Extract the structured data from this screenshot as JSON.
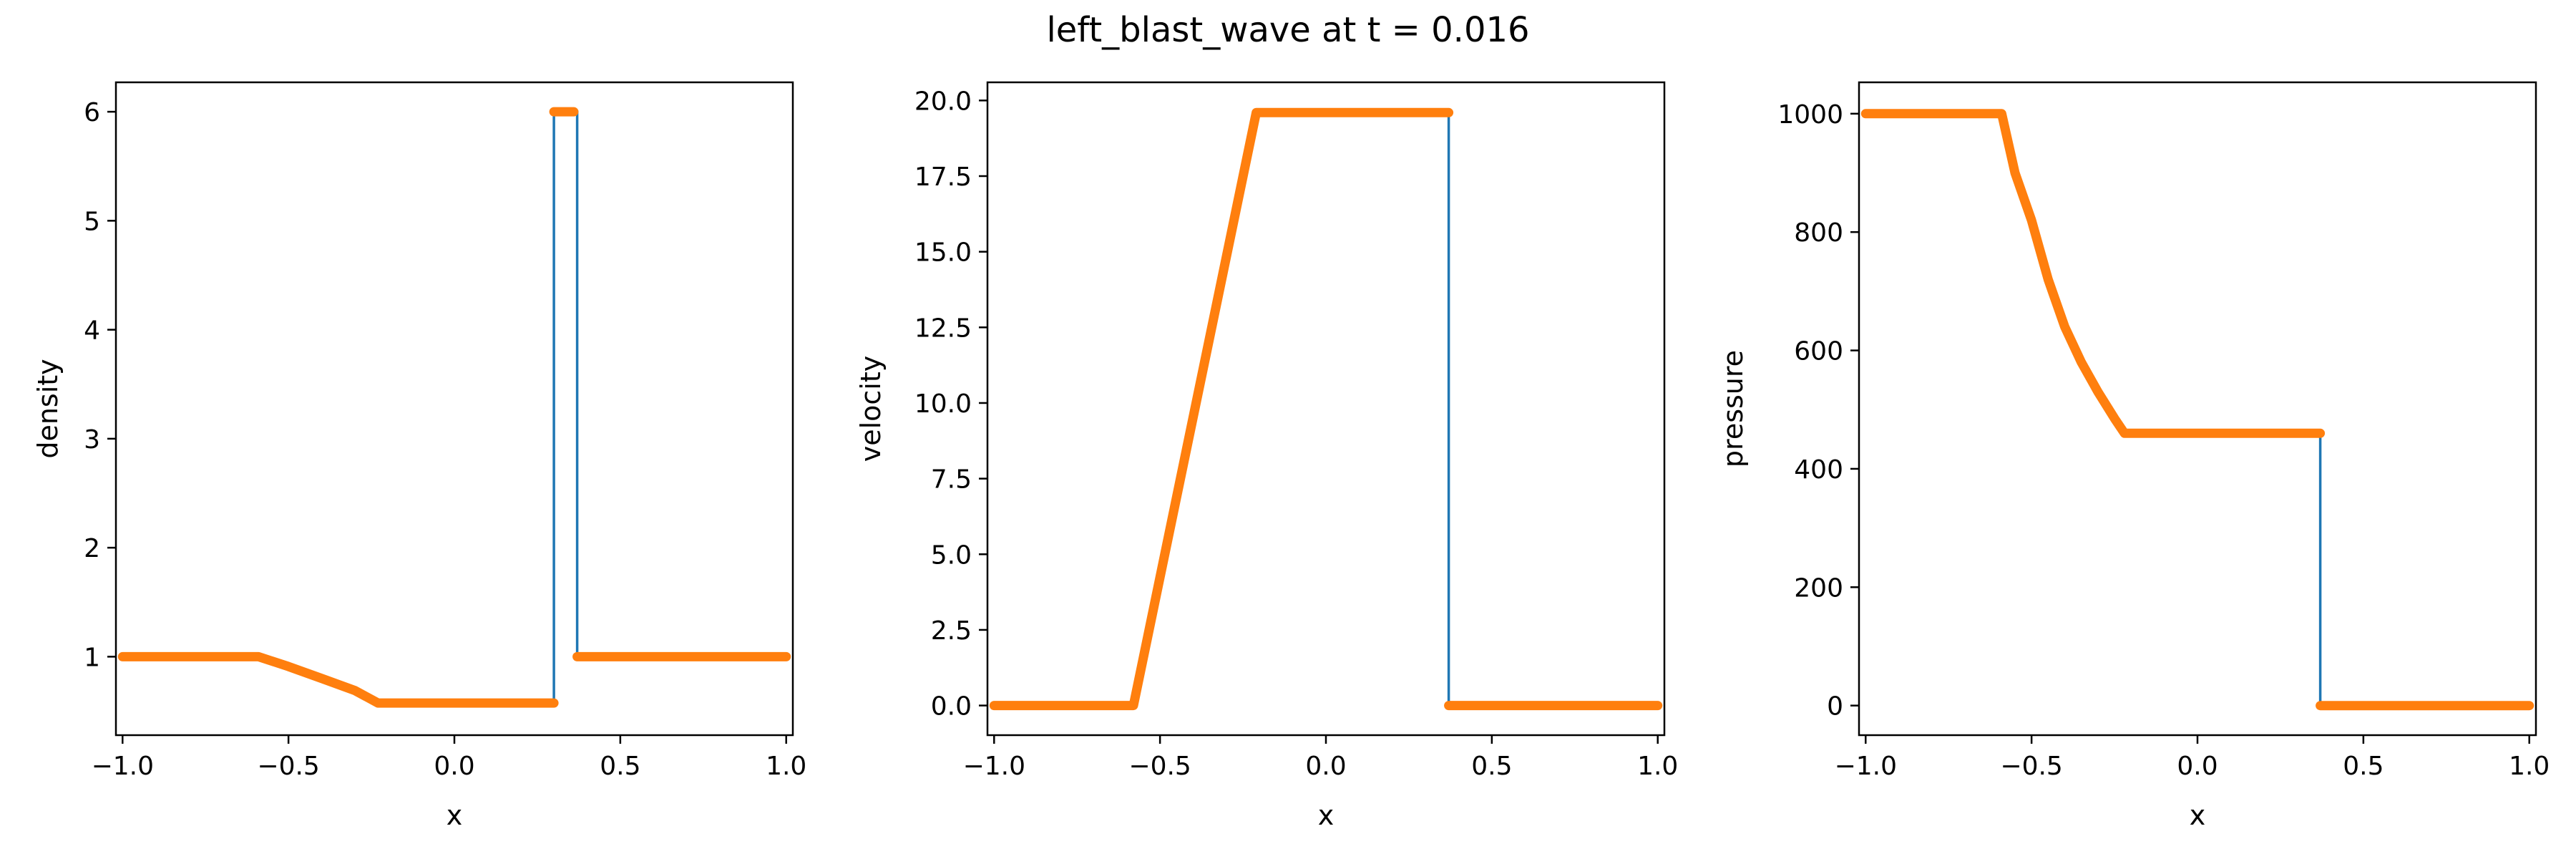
{
  "title": "left_blast_wave at t = 0.016",
  "colors": {
    "exact": "#1f77b4",
    "numerical": "#ff7f0e",
    "axes": "#000000"
  },
  "chart_data": [
    {
      "type": "line",
      "xlabel": "x",
      "ylabel": "density",
      "xlim": [
        -1.02,
        1.02
      ],
      "ylim": [
        0.28,
        6.27
      ],
      "xticks": [
        -1.0,
        -0.5,
        0.0,
        0.5,
        1.0
      ],
      "xtick_labels": [
        "−1.0",
        "−0.5",
        "0.0",
        "0.5",
        "1.0"
      ],
      "yticks": [
        1,
        2,
        3,
        4,
        5,
        6
      ],
      "ytick_labels": [
        "1",
        "2",
        "3",
        "4",
        "5",
        "6"
      ],
      "series": [
        {
          "role": "exact",
          "style": "thin-line",
          "x": [
            -1.0,
            -0.59,
            -0.5,
            -0.4,
            -0.3,
            -0.23,
            0.3,
            0.3,
            0.36,
            0.37,
            0.37,
            1.0
          ],
          "y": [
            1.0,
            1.0,
            0.91,
            0.8,
            0.69,
            0.575,
            0.575,
            6.0,
            6.0,
            6.0,
            1.0,
            1.0
          ]
        },
        {
          "role": "numerical",
          "style": "thick-markers",
          "segments": [
            {
              "x": [
                -1.0,
                -0.59,
                -0.5,
                -0.4,
                -0.3,
                -0.23,
                0.3
              ],
              "y": [
                1.0,
                1.0,
                0.91,
                0.8,
                0.69,
                0.575,
                0.575
              ]
            },
            {
              "x": [
                0.3,
                0.36
              ],
              "y": [
                6.0,
                6.0
              ]
            },
            {
              "x": [
                0.37,
                1.0
              ],
              "y": [
                1.0,
                1.0
              ]
            }
          ]
        }
      ]
    },
    {
      "type": "line",
      "xlabel": "x",
      "ylabel": "velocity",
      "xlim": [
        -1.02,
        1.02
      ],
      "ylim": [
        -0.98,
        20.6
      ],
      "xticks": [
        -1.0,
        -0.5,
        0.0,
        0.5,
        1.0
      ],
      "xtick_labels": [
        "−1.0",
        "−0.5",
        "0.0",
        "0.5",
        "1.0"
      ],
      "yticks": [
        0.0,
        2.5,
        5.0,
        7.5,
        10.0,
        12.5,
        15.0,
        17.5,
        20.0
      ],
      "ytick_labels": [
        "0.0",
        "2.5",
        "5.0",
        "7.5",
        "10.0",
        "12.5",
        "15.0",
        "17.5",
        "20.0"
      ],
      "series": [
        {
          "role": "exact",
          "style": "thin-line",
          "x": [
            -1.0,
            -0.58,
            -0.21,
            0.37,
            0.37,
            1.0
          ],
          "y": [
            0.0,
            0.0,
            19.6,
            19.6,
            0.0,
            0.0
          ]
        },
        {
          "role": "numerical",
          "style": "thick-markers",
          "segments": [
            {
              "x": [
                -1.0,
                -0.58,
                -0.21,
                0.37
              ],
              "y": [
                0.0,
                0.0,
                19.6,
                19.6
              ]
            },
            {
              "x": [
                0.37,
                1.0
              ],
              "y": [
                0.0,
                0.0
              ]
            }
          ]
        }
      ]
    },
    {
      "type": "line",
      "xlabel": "x",
      "ylabel": "pressure",
      "xlim": [
        -1.02,
        1.02
      ],
      "ylim": [
        -50,
        1053
      ],
      "xticks": [
        -1.0,
        -0.5,
        0.0,
        0.5,
        1.0
      ],
      "xtick_labels": [
        "−1.0",
        "−0.5",
        "0.0",
        "0.5",
        "1.0"
      ],
      "yticks": [
        0,
        200,
        400,
        600,
        800,
        1000
      ],
      "ytick_labels": [
        "0",
        "200",
        "400",
        "600",
        "800",
        "1000"
      ],
      "series": [
        {
          "role": "exact",
          "style": "thin-line",
          "x": [
            -1.0,
            -0.59,
            -0.55,
            -0.5,
            -0.45,
            -0.4,
            -0.35,
            -0.3,
            -0.25,
            -0.22,
            0.37,
            0.37,
            1.0
          ],
          "y": [
            1000,
            1000,
            900,
            820,
            720,
            640,
            580,
            530,
            485,
            460,
            460,
            0,
            0
          ]
        },
        {
          "role": "numerical",
          "style": "thick-markers",
          "segments": [
            {
              "x": [
                -1.0,
                -0.59,
                -0.55,
                -0.5,
                -0.45,
                -0.4,
                -0.35,
                -0.3,
                -0.25,
                -0.22,
                0.37
              ],
              "y": [
                1000,
                1000,
                900,
                820,
                720,
                640,
                580,
                530,
                485,
                460,
                460
              ]
            },
            {
              "x": [
                0.37,
                1.0
              ],
              "y": [
                0,
                0
              ]
            }
          ]
        }
      ]
    }
  ]
}
